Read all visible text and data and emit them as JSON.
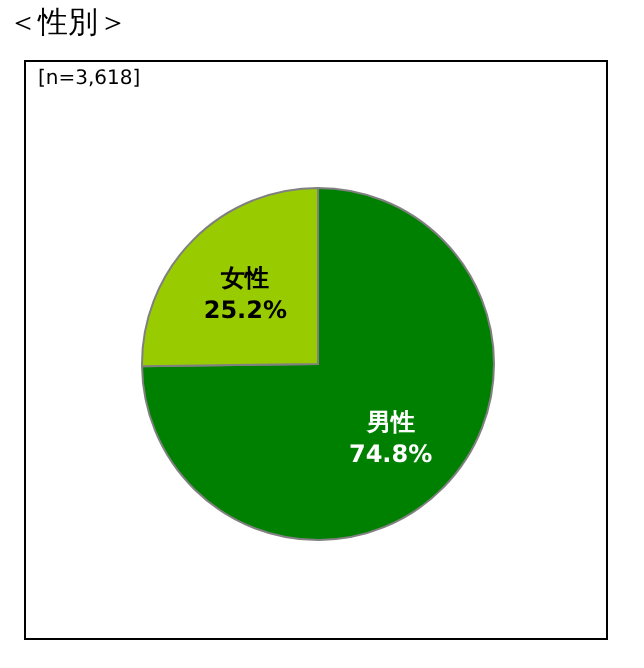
{
  "chart_data": {
    "type": "pie",
    "title": "＜性別＞",
    "annotations": [
      "[n=3,618]"
    ],
    "categories": [
      "男性",
      "女性"
    ],
    "values": [
      74.8,
      25.2
    ],
    "value_labels": [
      "74.8%",
      "25.2%"
    ],
    "colors": [
      "#008000",
      "#99cc00"
    ],
    "legend": false
  }
}
